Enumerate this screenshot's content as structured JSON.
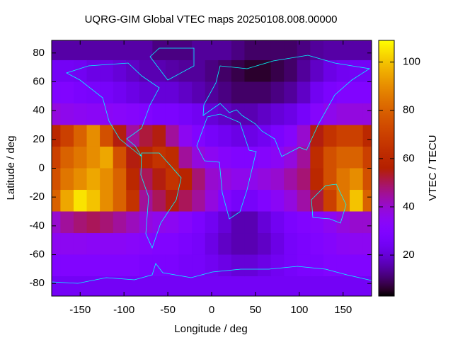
{
  "chart_data": {
    "type": "heatmap",
    "title": "UQRG-GIM Global VTEC maps 20250108.008.00000",
    "x_label": "Longitude / deg",
    "y_label": "Latitude / deg",
    "colorbar_label": "VTEC / TECU",
    "xlim": [
      -182.5,
      182.5
    ],
    "ylim": [
      -88.75,
      88.75
    ],
    "clim": [
      3,
      109
    ],
    "xticks": [
      -150,
      -100,
      -50,
      0,
      50,
      100,
      150
    ],
    "yticks": [
      -80,
      -60,
      -40,
      -20,
      0,
      20,
      40,
      60,
      80
    ],
    "cticks": [
      20,
      40,
      60,
      80,
      100
    ],
    "colormap": "gnuplot-7-5-15",
    "x": [
      -180,
      -165,
      -150,
      -135,
      -120,
      -105,
      -90,
      -75,
      -60,
      -45,
      -30,
      -15,
      0,
      15,
      30,
      45,
      60,
      75,
      90,
      105,
      120,
      135,
      150,
      165,
      180
    ],
    "y": [
      82.5,
      67.5,
      52.5,
      37.5,
      22.5,
      7.5,
      -7.5,
      -22.5,
      -37.5,
      -52.5,
      -67.5,
      -82.5
    ],
    "z": [
      [
        15,
        15,
        15,
        15,
        15,
        15,
        15,
        15,
        12,
        12,
        12,
        14,
        14,
        14,
        12,
        10,
        10,
        10,
        10,
        12,
        14,
        15,
        15,
        15,
        15
      ],
      [
        25,
        25,
        24,
        22,
        22,
        20,
        18,
        16,
        16,
        15,
        14,
        14,
        12,
        10,
        8,
        6,
        6,
        8,
        10,
        14,
        18,
        22,
        24,
        25,
        25
      ],
      [
        30,
        30,
        28,
        27,
        26,
        24,
        22,
        20,
        20,
        20,
        18,
        16,
        14,
        12,
        10,
        10,
        10,
        12,
        14,
        18,
        24,
        28,
        30,
        30,
        30
      ],
      [
        38,
        36,
        35,
        34,
        34,
        33,
        32,
        30,
        28,
        28,
        26,
        24,
        20,
        18,
        16,
        16,
        18,
        20,
        22,
        26,
        32,
        36,
        38,
        38,
        38
      ],
      [
        60,
        70,
        80,
        90,
        75,
        55,
        45,
        52,
        55,
        45,
        35,
        30,
        26,
        24,
        22,
        22,
        24,
        28,
        32,
        40,
        55,
        65,
        70,
        70,
        60
      ],
      [
        70,
        80,
        85,
        90,
        95,
        75,
        55,
        58,
        65,
        62,
        45,
        38,
        35,
        32,
        30,
        30,
        32,
        34,
        38,
        45,
        62,
        75,
        80,
        80,
        70
      ],
      [
        75,
        85,
        90,
        95,
        90,
        80,
        60,
        50,
        55,
        65,
        58,
        48,
        40,
        38,
        36,
        36,
        38,
        40,
        44,
        48,
        60,
        75,
        85,
        90,
        75
      ],
      [
        80,
        95,
        105,
        100,
        90,
        80,
        65,
        45,
        50,
        55,
        50,
        45,
        38,
        30,
        26,
        26,
        30,
        34,
        38,
        44,
        52,
        70,
        85,
        100,
        80
      ],
      [
        40,
        45,
        48,
        50,
        48,
        45,
        42,
        38,
        36,
        35,
        32,
        28,
        24,
        20,
        16,
        16,
        20,
        24,
        28,
        30,
        32,
        35,
        38,
        40,
        40
      ],
      [
        35,
        35,
        35,
        34,
        34,
        34,
        33,
        32,
        30,
        30,
        28,
        26,
        22,
        18,
        16,
        16,
        18,
        22,
        26,
        28,
        30,
        32,
        34,
        35,
        35
      ],
      [
        30,
        30,
        30,
        30,
        30,
        30,
        30,
        28,
        28,
        28,
        26,
        26,
        24,
        22,
        20,
        20,
        22,
        24,
        26,
        28,
        28,
        30,
        30,
        30,
        30
      ],
      [
        25,
        25,
        25,
        25,
        25,
        25,
        25,
        25,
        25,
        25,
        25,
        25,
        25,
        25,
        25,
        25,
        25,
        25,
        25,
        25,
        25,
        25,
        25,
        25,
        25
      ]
    ]
  }
}
